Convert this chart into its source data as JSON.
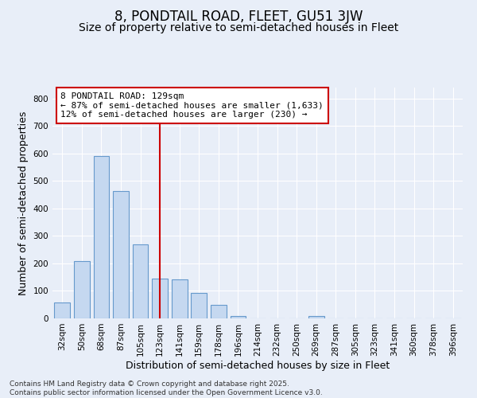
{
  "title": "8, PONDTAIL ROAD, FLEET, GU51 3JW",
  "subtitle": "Size of property relative to semi-detached houses in Fleet",
  "xlabel": "Distribution of semi-detached houses by size in Fleet",
  "ylabel": "Number of semi-detached properties",
  "categories": [
    "32sqm",
    "50sqm",
    "68sqm",
    "87sqm",
    "105sqm",
    "123sqm",
    "141sqm",
    "159sqm",
    "178sqm",
    "196sqm",
    "214sqm",
    "232sqm",
    "250sqm",
    "269sqm",
    "287sqm",
    "305sqm",
    "323sqm",
    "341sqm",
    "360sqm",
    "378sqm",
    "396sqm"
  ],
  "values": [
    58,
    210,
    590,
    463,
    270,
    145,
    143,
    92,
    48,
    10,
    0,
    0,
    0,
    8,
    0,
    0,
    0,
    0,
    0,
    0,
    0
  ],
  "bar_color": "#c5d8f0",
  "bar_edge_color": "#6699cc",
  "vline_color": "#cc0000",
  "vline_x_index": 5,
  "annotation_title": "8 PONDTAIL ROAD: 129sqm",
  "annotation_line1": "← 87% of semi-detached houses are smaller (1,633)",
  "annotation_line2": "12% of semi-detached houses are larger (230) →",
  "annotation_box_facecolor": "#ffffff",
  "annotation_box_edgecolor": "#cc0000",
  "ylim": [
    0,
    840
  ],
  "yticks": [
    0,
    100,
    200,
    300,
    400,
    500,
    600,
    700,
    800
  ],
  "background_color": "#e8eef8",
  "plot_background": "#e8eef8",
  "grid_color": "#ffffff",
  "title_fontsize": 12,
  "subtitle_fontsize": 10,
  "axis_label_fontsize": 9,
  "tick_fontsize": 7.5,
  "annotation_fontsize": 8,
  "footer_fontsize": 6.5,
  "footer": "Contains HM Land Registry data © Crown copyright and database right 2025.\nContains public sector information licensed under the Open Government Licence v3.0."
}
